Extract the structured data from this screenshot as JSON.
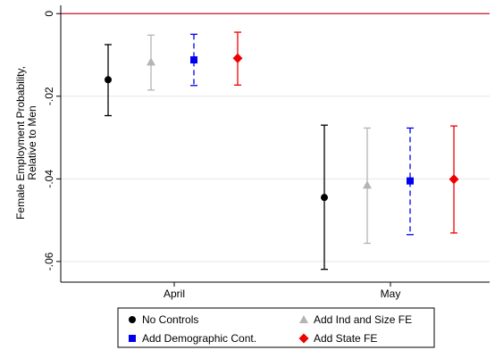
{
  "chart_data": {
    "type": "scatter",
    "title": "",
    "xlabel": "",
    "ylabel_lines": [
      "Female Employment Probability,",
      "Relative to Men"
    ],
    "categories": [
      "April",
      "May"
    ],
    "ylim": [
      -0.065,
      0.0
    ],
    "yticks": [
      0,
      -0.02,
      -0.04,
      -0.06
    ],
    "ytick_labels": [
      "0",
      "-.02",
      "-.04",
      "-.06"
    ],
    "reference_line": {
      "y": 0,
      "color": "#c8102e"
    },
    "grid": true,
    "legend_position": "bottom",
    "series": [
      {
        "name": "No Controls",
        "color": "#000000",
        "marker": "circle",
        "dashed": false,
        "estimates": [
          -0.016,
          -0.0445
        ],
        "ci_low": [
          -0.0247,
          -0.0619
        ],
        "ci_high": [
          -0.0075,
          -0.027
        ]
      },
      {
        "name": "Add Ind and Size FE",
        "color": "#b4b4b4",
        "marker": "triangle",
        "dashed": false,
        "estimates": [
          -0.0117,
          -0.0415
        ],
        "ci_low": [
          -0.0185,
          -0.0556
        ],
        "ci_high": [
          -0.0052,
          -0.0277
        ]
      },
      {
        "name": "Add Demographic Cont.",
        "color": "#0000ee",
        "marker": "square",
        "dashed": true,
        "estimates": [
          -0.0112,
          -0.0405
        ],
        "ci_low": [
          -0.0174,
          -0.0535
        ],
        "ci_high": [
          -0.005,
          -0.0277
        ]
      },
      {
        "name": "Add State FE",
        "color": "#ee0000",
        "marker": "diamond",
        "dashed": false,
        "estimates": [
          -0.0108,
          -0.0401
        ],
        "ci_low": [
          -0.0173,
          -0.0531
        ],
        "ci_high": [
          -0.0045,
          -0.0272
        ]
      }
    ]
  }
}
